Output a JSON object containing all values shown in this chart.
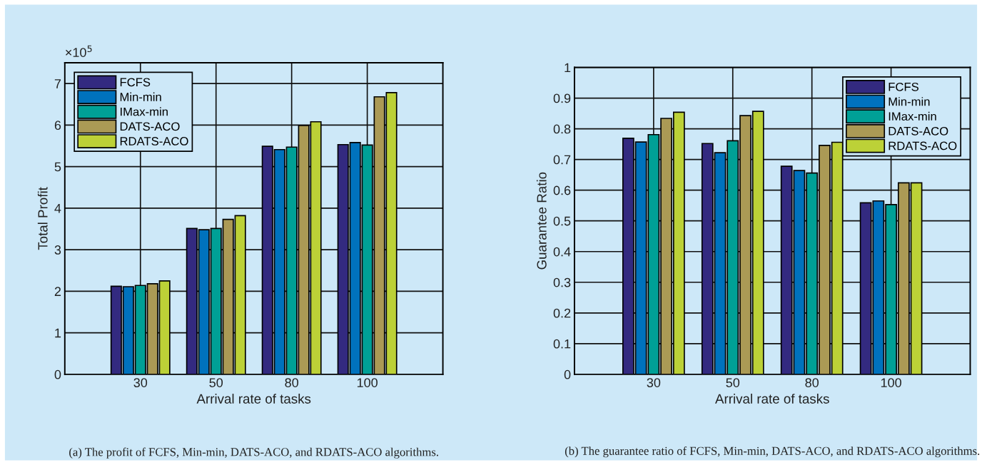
{
  "chart_data": [
    {
      "type": "bar",
      "xlabel": "Arrival rate of tasks",
      "ylabel": "Total Profit",
      "categories": [
        "30",
        "50",
        "80",
        "100"
      ],
      "series": [
        {
          "name": "FCFS",
          "color": "#332a80",
          "values": [
            2.12,
            3.51,
            5.49,
            5.53
          ]
        },
        {
          "name": "Min-min",
          "color": "#0072bd",
          "values": [
            2.11,
            3.48,
            5.41,
            5.58
          ]
        },
        {
          "name": "IMax-min",
          "color": "#00a096",
          "values": [
            2.14,
            3.51,
            5.47,
            5.52
          ]
        },
        {
          "name": "DATS-ACO",
          "color": "#ab9a55",
          "values": [
            2.18,
            3.73,
            5.99,
            6.68
          ]
        },
        {
          "name": "RDATS-ACO",
          "color": "#bcd137",
          "values": [
            2.25,
            3.82,
            6.08,
            6.78
          ]
        }
      ],
      "ylim": [
        0,
        7.5
      ],
      "yticks": [
        0,
        1,
        2,
        3,
        4,
        5,
        6,
        7
      ],
      "grid": true,
      "legend": "top left",
      "annotations": [
        "×10$^{5}$",
        "(a) The profit of FCFS, Min-min, DATS-ACO, and RDATS-ACO algorithms."
      ]
    },
    {
      "type": "bar",
      "xlabel": "Arrival rate of tasks",
      "ylabel": "Guarantee Ratio",
      "categories": [
        "30",
        "50",
        "80",
        "100"
      ],
      "series": [
        {
          "name": "FCFS",
          "color": "#332a80",
          "values": [
            0.769,
            0.752,
            0.678,
            0.559
          ]
        },
        {
          "name": "Min-min",
          "color": "#0072bd",
          "values": [
            0.757,
            0.722,
            0.664,
            0.565
          ]
        },
        {
          "name": "IMax-min",
          "color": "#00a096",
          "values": [
            0.781,
            0.761,
            0.656,
            0.553
          ]
        },
        {
          "name": "DATS-ACO",
          "color": "#ab9a55",
          "values": [
            0.834,
            0.843,
            0.746,
            0.624
          ]
        },
        {
          "name": "RDATS-ACO",
          "color": "#bcd137",
          "values": [
            0.854,
            0.857,
            0.756,
            0.624
          ]
        }
      ],
      "ylim": [
        0,
        1
      ],
      "yticks": [
        0,
        0.1,
        0.2,
        0.3,
        0.4,
        0.5,
        0.6,
        0.7,
        0.8,
        0.9,
        1
      ],
      "grid": true,
      "legend": "top right",
      "annotations": [
        "(b) The guarantee ratio of FCFS, Min-min, DATS-ACO, and RDATS-ACO algorithms."
      ]
    }
  ]
}
